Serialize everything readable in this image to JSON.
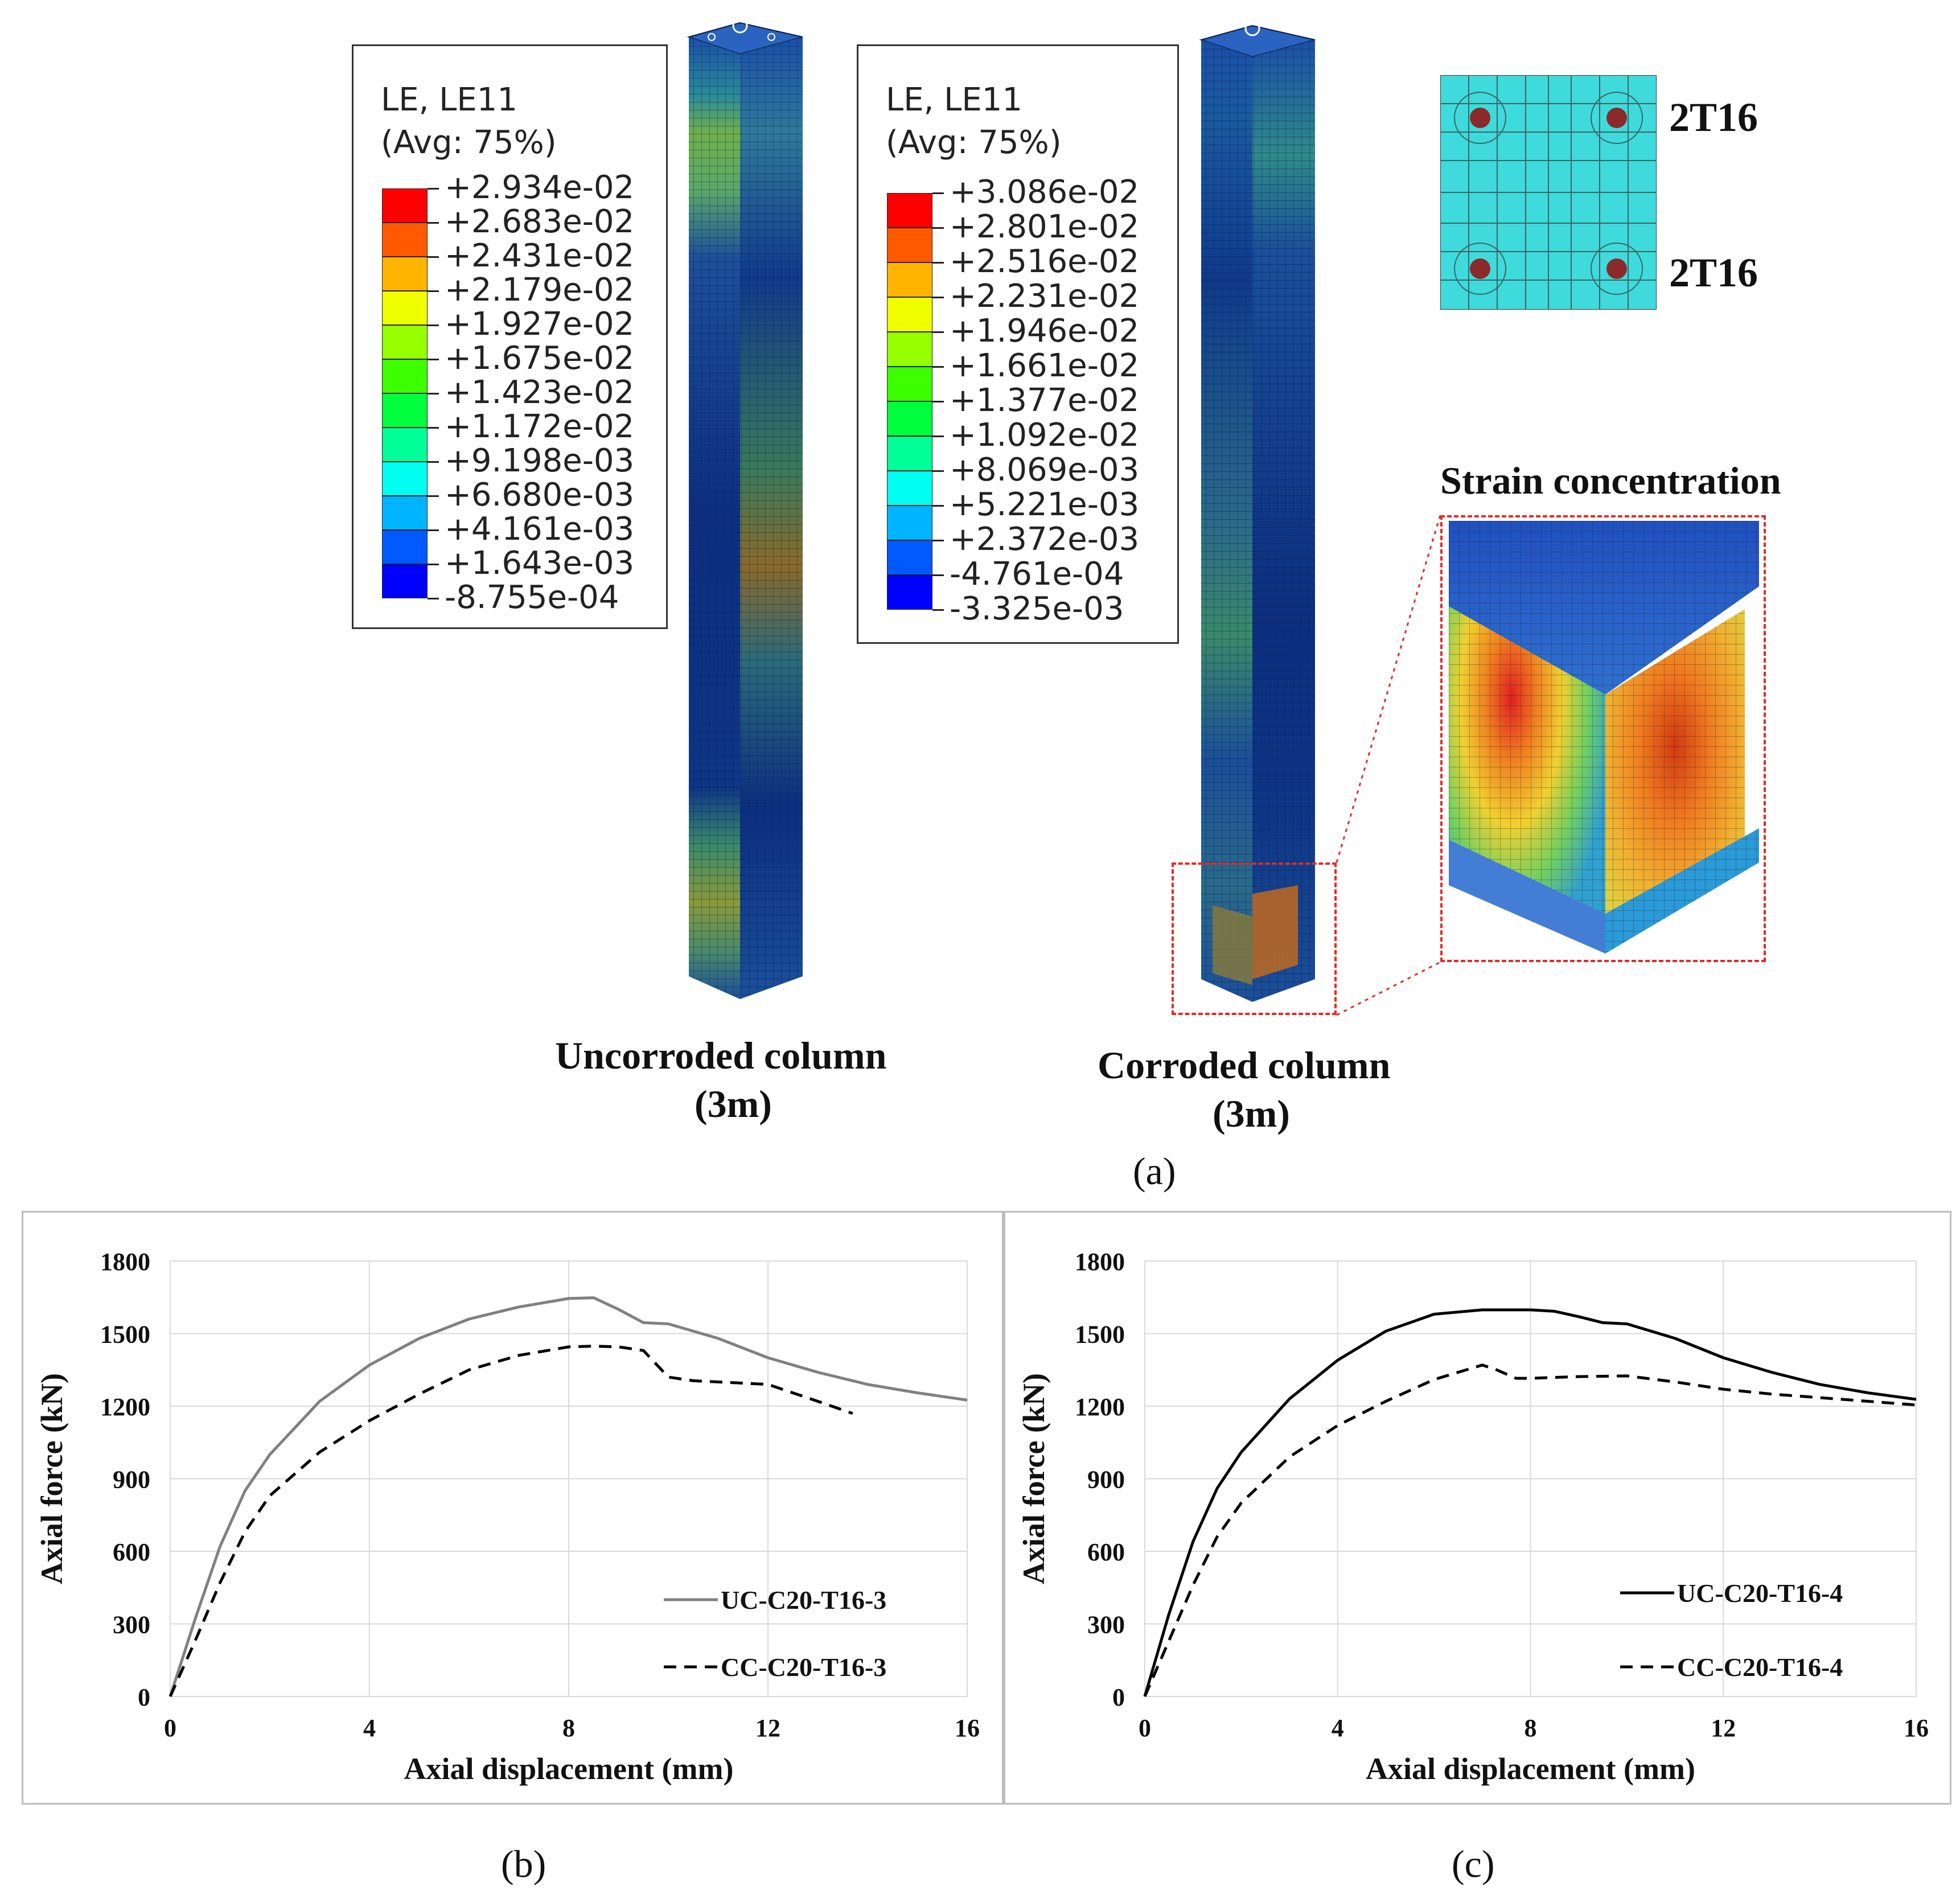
{
  "panel_a": {
    "legend_uncorroded": {
      "title_line1": "LE, LE11",
      "title_line2": "(Avg: 75%)",
      "values": [
        "+2.934e-02",
        "+2.683e-02",
        "+2.431e-02",
        "+2.179e-02",
        "+1.927e-02",
        "+1.675e-02",
        "+1.423e-02",
        "+1.172e-02",
        "+9.198e-03",
        "+6.680e-03",
        "+4.161e-03",
        "+1.643e-03",
        "-8.755e-04"
      ]
    },
    "legend_corroded": {
      "title_line1": "LE, LE11",
      "title_line2": "(Avg: 75%)",
      "values": [
        "+3.086e-02",
        "+2.801e-02",
        "+2.516e-02",
        "+2.231e-02",
        "+1.946e-02",
        "+1.661e-02",
        "+1.377e-02",
        "+1.092e-02",
        "+8.069e-03",
        "+5.221e-03",
        "+2.372e-03",
        "-4.761e-04",
        "-3.325e-03"
      ]
    },
    "colors": [
      "#ff0000",
      "#ff5a00",
      "#ffb400",
      "#f0ff00",
      "#96ff00",
      "#3cff00",
      "#00ff3c",
      "#00ff96",
      "#00fff0",
      "#00b4ff",
      "#005aff",
      "#0000ff"
    ],
    "rebar_top": "2T16",
    "rebar_bottom": "2T16",
    "strain_label": "Strain concentration",
    "uncorroded_label_line1": "Uncorroded column",
    "uncorroded_label_line2": "(3m)",
    "corroded_label_line1": "Corroded column",
    "corroded_label_line2": "(3m)",
    "caption": "(a)"
  },
  "caption_b": "(b)",
  "caption_c": "(c)",
  "chart_data": [
    {
      "type": "line",
      "xlabel": "Axial displacement (mm)",
      "ylabel": "Axial force (kN)",
      "xlim": [
        0,
        16
      ],
      "ylim": [
        0,
        1800
      ],
      "xticks": [
        "0",
        "4",
        "8",
        "12",
        "16"
      ],
      "yticks": [
        "0",
        "300",
        "600",
        "900",
        "1200",
        "1500",
        "1800"
      ],
      "series": [
        {
          "name": "UC-C20-T16-3",
          "color": "#808080",
          "dash": "solid",
          "x": [
            0,
            0.5,
            1,
            1.5,
            2,
            3,
            4,
            5,
            6,
            7,
            8,
            8.5,
            9,
            9.5,
            10,
            11,
            12,
            13,
            14,
            15,
            16
          ],
          "y": [
            0,
            320,
            620,
            850,
            1000,
            1220,
            1370,
            1480,
            1560,
            1610,
            1645,
            1648,
            1600,
            1545,
            1540,
            1480,
            1400,
            1340,
            1290,
            1255,
            1225
          ]
        },
        {
          "name": "CC-C20-T16-3",
          "color": "#000000",
          "dash": "dashed",
          "x": [
            0,
            0.5,
            1,
            1.5,
            2,
            3,
            4,
            5,
            6,
            7,
            8,
            8.5,
            9,
            9.5,
            10,
            10.5,
            11,
            12,
            13,
            13.7
          ],
          "y": [
            0,
            230,
            470,
            680,
            830,
            1010,
            1140,
            1250,
            1350,
            1410,
            1445,
            1448,
            1445,
            1430,
            1320,
            1305,
            1300,
            1290,
            1220,
            1170
          ]
        }
      ]
    },
    {
      "type": "line",
      "xlabel": "Axial displacement (mm)",
      "ylabel": "Axial force (kN)",
      "xlim": [
        0,
        16
      ],
      "ylim": [
        0,
        1800
      ],
      "xticks": [
        "0",
        "4",
        "8",
        "12",
        "16"
      ],
      "yticks": [
        "0",
        "300",
        "600",
        "900",
        "1200",
        "1500",
        "1800"
      ],
      "series": [
        {
          "name": "UC-C20-T16-4",
          "color": "#000000",
          "dash": "solid",
          "x": [
            0,
            0.5,
            1,
            1.5,
            2,
            3,
            4,
            5,
            6,
            7,
            8,
            8.5,
            9,
            9.5,
            10,
            11,
            12,
            13,
            14,
            15,
            16
          ],
          "y": [
            0,
            340,
            640,
            860,
            1010,
            1230,
            1390,
            1510,
            1580,
            1598,
            1598,
            1592,
            1570,
            1545,
            1540,
            1480,
            1400,
            1340,
            1290,
            1255,
            1228
          ]
        },
        {
          "name": "CC-C20-T16-4",
          "color": "#000000",
          "dash": "dashed",
          "x": [
            0,
            0.5,
            1,
            1.5,
            2,
            3,
            4,
            5,
            6,
            7,
            7.3,
            7.7,
            8,
            9,
            10,
            11,
            12,
            13,
            14,
            15,
            16
          ],
          "y": [
            0,
            230,
            460,
            660,
            800,
            990,
            1120,
            1220,
            1310,
            1370,
            1350,
            1315,
            1315,
            1322,
            1325,
            1300,
            1270,
            1250,
            1235,
            1220,
            1205
          ]
        }
      ]
    }
  ]
}
